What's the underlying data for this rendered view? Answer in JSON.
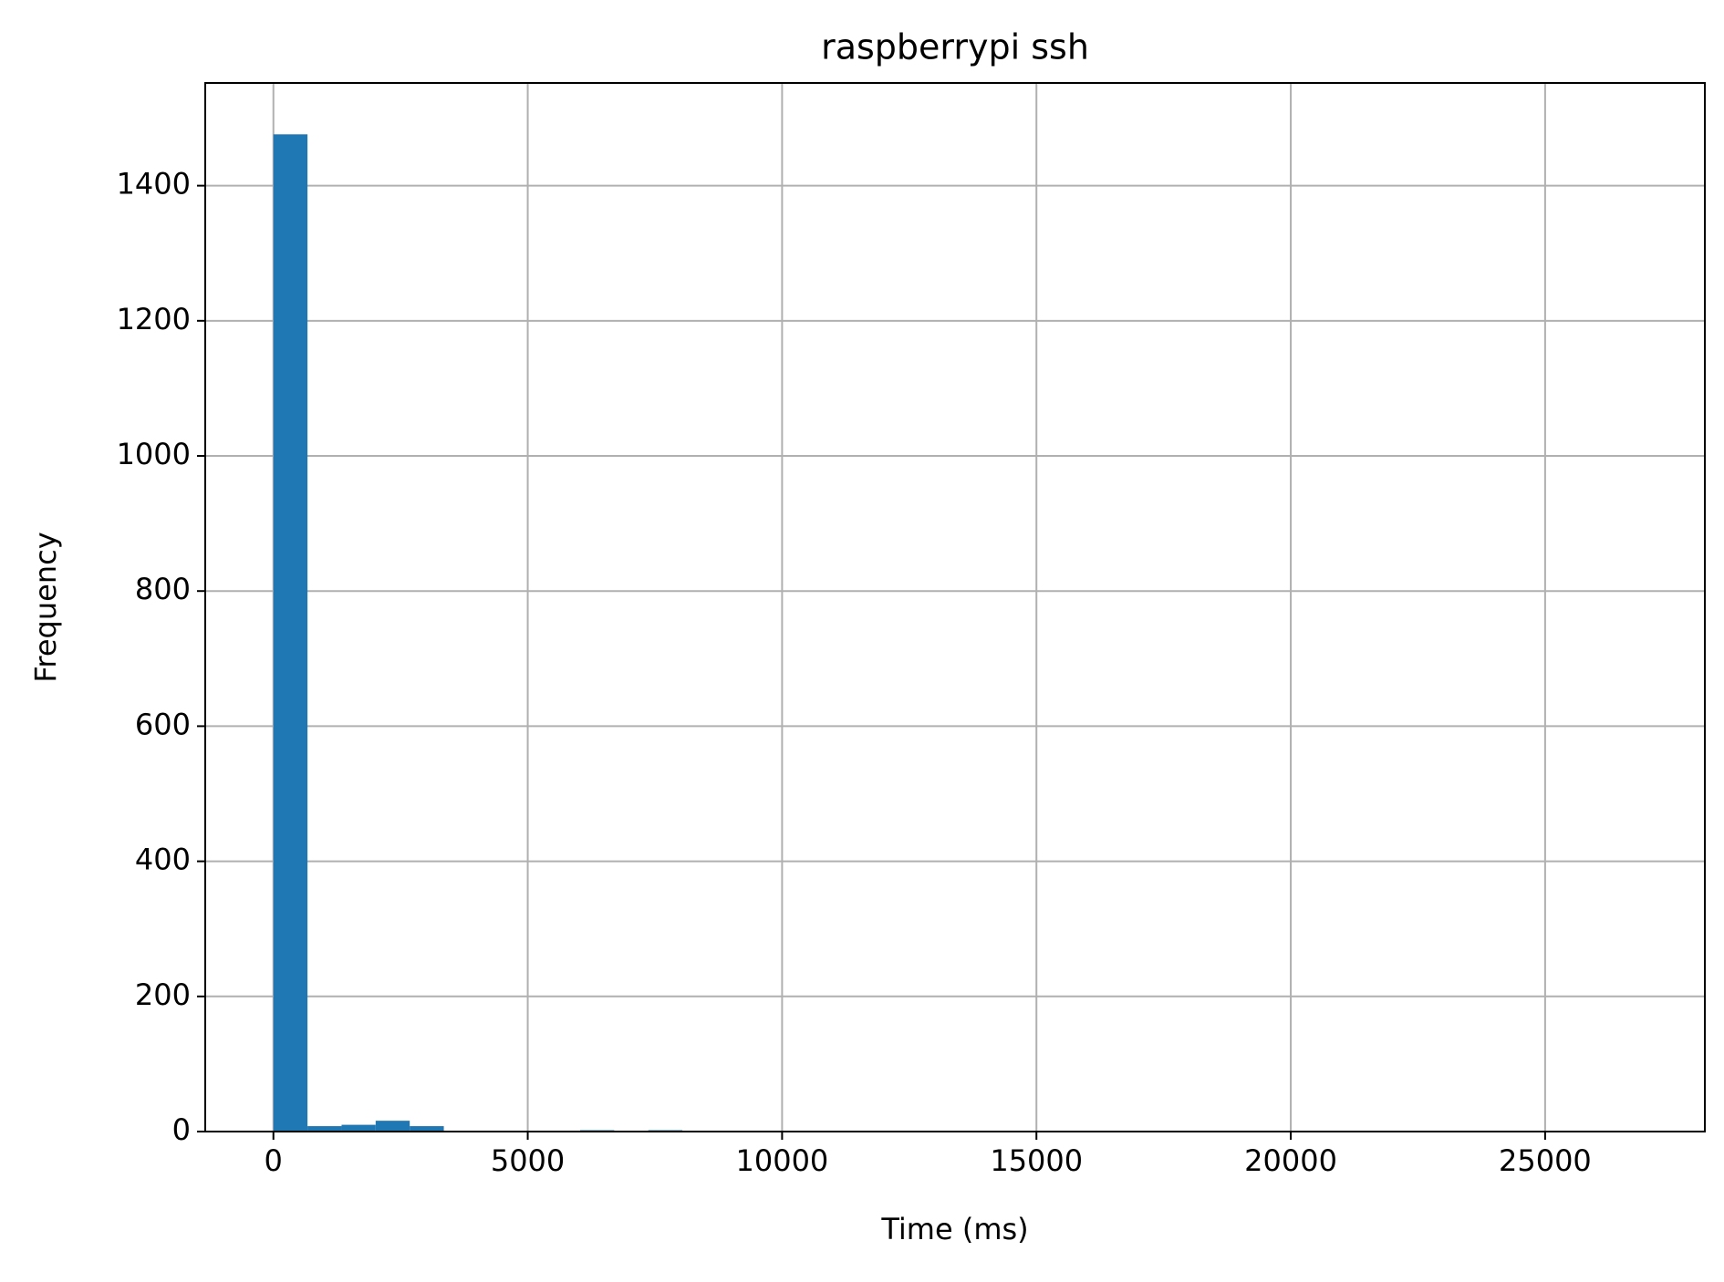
{
  "chart_data": {
    "type": "histogram",
    "title": "raspberrypi ssh",
    "x_label": "Time (ms)",
    "y_label": "Frequency",
    "bins": [
      0,
      670,
      1340,
      2010,
      2680,
      3350,
      4020,
      4690,
      5360,
      6030,
      6700,
      7370,
      8040,
      8710,
      9380,
      10050,
      10720,
      11390,
      12060,
      12730,
      13400,
      14070,
      14740,
      15410,
      16080,
      16750,
      17420,
      18090,
      18760,
      19430,
      20100,
      20770,
      21440,
      22110,
      22780,
      23450,
      24120,
      24790,
      25460,
      26130,
      26800
    ],
    "values": [
      1476,
      8,
      10,
      16,
      8,
      0,
      0,
      0,
      0,
      2,
      0,
      2,
      0,
      0,
      0,
      0,
      0,
      0,
      0,
      0,
      0,
      0,
      0,
      0,
      0,
      0,
      0,
      0,
      0,
      0,
      0,
      0,
      0,
      0,
      0,
      0,
      0,
      0,
      0,
      1
    ],
    "color": "#1f77b4",
    "xlim": [
      -1340,
      28140
    ],
    "xticks": [
      0,
      5000,
      10000,
      15000,
      20000,
      25000
    ],
    "ylim": [
      0,
      1552
    ],
    "yticks": [
      0,
      200,
      400,
      600,
      800,
      1000,
      1200,
      1400
    ],
    "grid": true
  }
}
